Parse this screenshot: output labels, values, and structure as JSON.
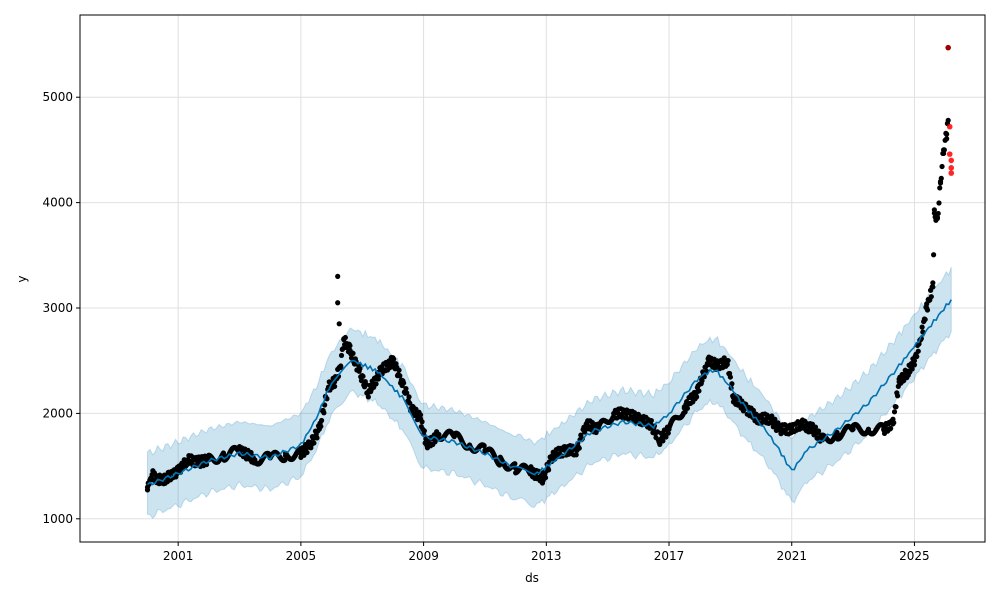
{
  "chart_data": {
    "type": "scatter",
    "title": "",
    "xlabel": "ds",
    "ylabel": "y",
    "xlim": [
      1997.8,
      2027.3
    ],
    "ylim": [
      780,
      5780
    ],
    "xticks": [
      2001,
      2005,
      2009,
      2013,
      2017,
      2021,
      2025
    ],
    "xtick_labels": [
      "2001",
      "2005",
      "2009",
      "2013",
      "2017",
      "2021",
      "2025"
    ],
    "yticks": [
      1000,
      2000,
      3000,
      4000,
      5000
    ],
    "ytick_labels": [
      "1000",
      "2000",
      "3000",
      "4000",
      "5000"
    ],
    "grid": true,
    "colors": {
      "actual": "#000000",
      "forecast": "#0072B2",
      "band": "#0072B2",
      "changepoint_outlier": "#ff0000",
      "outlier_dark": "#a00000"
    },
    "series": [
      {
        "name": "actual",
        "kind": "scatter",
        "points": [
          [
            2000.0,
            1300
          ],
          [
            2000.15,
            1420
          ],
          [
            2000.3,
            1380
          ],
          [
            2000.5,
            1360
          ],
          [
            2000.7,
            1400
          ],
          [
            2001.0,
            1450
          ],
          [
            2001.3,
            1560
          ],
          [
            2001.7,
            1540
          ],
          [
            2002.0,
            1560
          ],
          [
            2002.5,
            1600
          ],
          [
            2003.0,
            1650
          ],
          [
            2003.3,
            1600
          ],
          [
            2003.5,
            1560
          ],
          [
            2004.0,
            1580
          ],
          [
            2004.5,
            1600
          ],
          [
            2005.0,
            1620
          ],
          [
            2005.3,
            1700
          ],
          [
            2005.6,
            1850
          ],
          [
            2005.9,
            2250
          ],
          [
            2006.1,
            2300
          ],
          [
            2006.3,
            2450
          ],
          [
            2006.4,
            2700
          ],
          [
            2006.6,
            2600
          ],
          [
            2006.9,
            2400
          ],
          [
            2007.2,
            2200
          ],
          [
            2007.6,
            2400
          ],
          [
            2008.0,
            2500
          ],
          [
            2008.3,
            2300
          ],
          [
            2008.6,
            2050
          ],
          [
            2008.9,
            1950
          ],
          [
            2009.1,
            1700
          ],
          [
            2009.5,
            1800
          ],
          [
            2010.0,
            1780
          ],
          [
            2010.5,
            1700
          ],
          [
            2011.0,
            1650
          ],
          [
            2011.5,
            1550
          ],
          [
            2012.0,
            1480
          ],
          [
            2012.5,
            1450
          ],
          [
            2012.9,
            1380
          ],
          [
            2013.2,
            1600
          ],
          [
            2013.6,
            1650
          ],
          [
            2014.0,
            1650
          ],
          [
            2014.3,
            1900
          ],
          [
            2014.7,
            1850
          ],
          [
            2015.2,
            2000
          ],
          [
            2015.6,
            2000
          ],
          [
            2016.0,
            1950
          ],
          [
            2016.4,
            1900
          ],
          [
            2016.7,
            1750
          ],
          [
            2017.0,
            1850
          ],
          [
            2017.5,
            2050
          ],
          [
            2017.9,
            2200
          ],
          [
            2018.3,
            2500
          ],
          [
            2018.6,
            2450
          ],
          [
            2018.9,
            2500
          ],
          [
            2019.1,
            2150
          ],
          [
            2019.5,
            2050
          ],
          [
            2019.9,
            1950
          ],
          [
            2020.3,
            1950
          ],
          [
            2020.6,
            1850
          ],
          [
            2021.0,
            1850
          ],
          [
            2021.3,
            1900
          ],
          [
            2021.7,
            1850
          ],
          [
            2022.0,
            1750
          ],
          [
            2022.5,
            1800
          ],
          [
            2023.0,
            1850
          ],
          [
            2023.5,
            1850
          ],
          [
            2024.0,
            1850
          ],
          [
            2024.3,
            1900
          ],
          [
            2024.5,
            2300
          ],
          [
            2024.8,
            2400
          ],
          [
            2025.0,
            2500
          ],
          [
            2025.2,
            2700
          ],
          [
            2025.4,
            3000
          ],
          [
            2025.6,
            3200
          ],
          [
            2025.65,
            3900
          ],
          [
            2025.75,
            3850
          ],
          [
            2025.85,
            4200
          ],
          [
            2025.95,
            4500
          ],
          [
            2026.05,
            4650
          ],
          [
            2026.1,
            4780
          ]
        ]
      },
      {
        "name": "actual_extremes",
        "kind": "scatter",
        "points": [
          [
            2006.2,
            3300
          ],
          [
            2006.2,
            3050
          ],
          [
            2006.25,
            2850
          ]
        ]
      },
      {
        "name": "outliers_red",
        "kind": "scatter",
        "points": [
          [
            2026.15,
            4720
          ],
          [
            2026.15,
            4460
          ],
          [
            2026.2,
            4400
          ],
          [
            2026.2,
            4330
          ],
          [
            2026.2,
            4280
          ]
        ]
      },
      {
        "name": "outlier_dark",
        "kind": "scatter",
        "points": [
          [
            2026.1,
            5470
          ]
        ]
      },
      {
        "name": "yhat",
        "kind": "line",
        "points": [
          [
            2000.0,
            1320
          ],
          [
            2001.0,
            1430
          ],
          [
            2002.0,
            1550
          ],
          [
            2003.0,
            1620
          ],
          [
            2004.0,
            1580
          ],
          [
            2005.0,
            1700
          ],
          [
            2005.5,
            1950
          ],
          [
            2006.0,
            2300
          ],
          [
            2006.7,
            2500
          ],
          [
            2007.5,
            2400
          ],
          [
            2008.3,
            2150
          ],
          [
            2009.0,
            1780
          ],
          [
            2010.0,
            1730
          ],
          [
            2011.0,
            1620
          ],
          [
            2012.0,
            1480
          ],
          [
            2012.7,
            1430
          ],
          [
            2013.5,
            1600
          ],
          [
            2014.5,
            1830
          ],
          [
            2015.5,
            1920
          ],
          [
            2016.5,
            1880
          ],
          [
            2017.0,
            2000
          ],
          [
            2018.0,
            2350
          ],
          [
            2018.5,
            2420
          ],
          [
            2019.0,
            2250
          ],
          [
            2019.5,
            2050
          ],
          [
            2020.0,
            1900
          ],
          [
            2020.5,
            1700
          ],
          [
            2021.0,
            1450
          ],
          [
            2021.5,
            1650
          ],
          [
            2022.5,
            1850
          ],
          [
            2023.5,
            2100
          ],
          [
            2024.5,
            2450
          ],
          [
            2025.3,
            2750
          ],
          [
            2026.2,
            3080
          ]
        ]
      },
      {
        "name": "uncertainty_interval",
        "kind": "band",
        "half_width": 300
      }
    ]
  }
}
